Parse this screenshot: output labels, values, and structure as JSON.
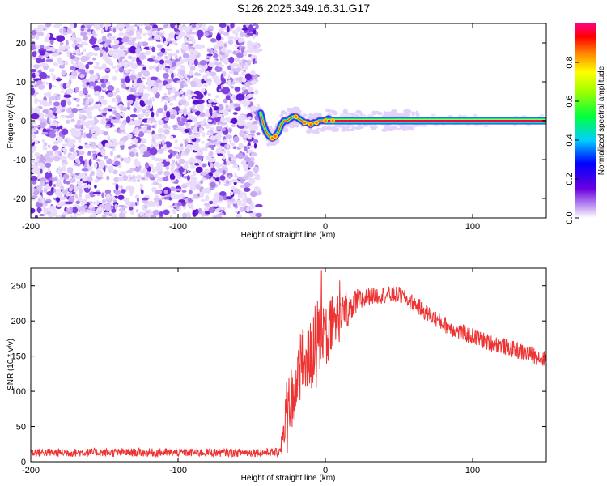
{
  "title": "S126.2025.349.16.31.G17",
  "chart_data": [
    {
      "type": "heatmap",
      "xlabel": "Height of straight line (km)",
      "ylabel": "Frequency (Hz)",
      "xlim": [
        -200,
        150
      ],
      "ylim": [
        -25,
        25
      ],
      "xticks": [
        -200,
        -100,
        0,
        100
      ],
      "xtick_labels": [
        "-200",
        "-100",
        "0",
        "100"
      ],
      "yticks": [
        -20,
        -10,
        0,
        10,
        20
      ],
      "ytick_labels": [
        "-20",
        "-10",
        "0",
        "10",
        "20"
      ],
      "noise_region_x": [
        -200,
        -45
      ],
      "trace": [
        {
          "x": -44,
          "y": 2
        },
        {
          "x": -42,
          "y": -1
        },
        {
          "x": -40,
          "y": -3
        },
        {
          "x": -38,
          "y": -4
        },
        {
          "x": -36,
          "y": -4.5
        },
        {
          "x": -34,
          "y": -4
        },
        {
          "x": -32,
          "y": -3
        },
        {
          "x": -30,
          "y": -1
        },
        {
          "x": -28,
          "y": 0
        },
        {
          "x": -26,
          "y": 0
        },
        {
          "x": -24,
          "y": 0.5
        },
        {
          "x": -22,
          "y": 1
        },
        {
          "x": -20,
          "y": 1
        },
        {
          "x": -18,
          "y": 0.5
        },
        {
          "x": -16,
          "y": 0
        },
        {
          "x": -14,
          "y": -0.5
        },
        {
          "x": -12,
          "y": -0.5
        },
        {
          "x": -10,
          "y": -1
        },
        {
          "x": -8,
          "y": -0.5
        },
        {
          "x": -6,
          "y": -0.5
        },
        {
          "x": -4,
          "y": 0
        },
        {
          "x": -2,
          "y": 0
        },
        {
          "x": 0,
          "y": 0
        },
        {
          "x": 2,
          "y": 0.5
        },
        {
          "x": 5,
          "y": 0
        },
        {
          "x": 10,
          "y": 0
        },
        {
          "x": 20,
          "y": 0
        },
        {
          "x": 150,
          "y": 0
        }
      ],
      "steady_band": {
        "x_start": 0,
        "x_end": 150,
        "y": 0
      },
      "colorbar": {
        "label": "Normalized spectral amplitude",
        "range": [
          0,
          1
        ],
        "ticks": [
          0.0,
          0.2,
          0.4,
          0.6,
          0.8
        ],
        "tick_labels": [
          "0.0",
          "0.2",
          "0.4",
          "0.6",
          "0.8"
        ]
      }
    },
    {
      "type": "line",
      "xlabel": "Height of straight line (km)",
      "ylabel": "SNR (10 * v/v)",
      "xlim": [
        -200,
        150
      ],
      "ylim": [
        0,
        275
      ],
      "xticks": [
        -200,
        -100,
        0,
        100
      ],
      "xtick_labels": [
        "-200",
        "-100",
        "0",
        "100"
      ],
      "yticks": [
        0,
        50,
        100,
        150,
        200,
        250
      ],
      "ytick_labels": [
        "0",
        "50",
        "100",
        "150",
        "200",
        "250"
      ],
      "color": "#ee3333",
      "envelope": [
        {
          "x": -200,
          "y": 13
        },
        {
          "x": -150,
          "y": 13
        },
        {
          "x": -100,
          "y": 13
        },
        {
          "x": -60,
          "y": 13
        },
        {
          "x": -32,
          "y": 13
        },
        {
          "x": -28,
          "y": 35
        },
        {
          "x": -25,
          "y": 80
        },
        {
          "x": -20,
          "y": 110
        },
        {
          "x": -15,
          "y": 135
        },
        {
          "x": -10,
          "y": 150
        },
        {
          "x": -5,
          "y": 165
        },
        {
          "x": 0,
          "y": 180
        },
        {
          "x": 5,
          "y": 195
        },
        {
          "x": 10,
          "y": 205
        },
        {
          "x": 15,
          "y": 215
        },
        {
          "x": 20,
          "y": 225
        },
        {
          "x": 30,
          "y": 235
        },
        {
          "x": 40,
          "y": 237
        },
        {
          "x": 50,
          "y": 237
        },
        {
          "x": 60,
          "y": 225
        },
        {
          "x": 70,
          "y": 210
        },
        {
          "x": 80,
          "y": 196
        },
        {
          "x": 90,
          "y": 185
        },
        {
          "x": 100,
          "y": 178
        },
        {
          "x": 110,
          "y": 170
        },
        {
          "x": 120,
          "y": 165
        },
        {
          "x": 130,
          "y": 158
        },
        {
          "x": 140,
          "y": 152
        },
        {
          "x": 150,
          "y": 145
        }
      ],
      "noise_amplitude": [
        {
          "x": -200,
          "y": 6
        },
        {
          "x": -32,
          "y": 6
        },
        {
          "x": -25,
          "y": 45
        },
        {
          "x": -10,
          "y": 55
        },
        {
          "x": 0,
          "y": 50
        },
        {
          "x": 15,
          "y": 25
        },
        {
          "x": 30,
          "y": 12
        },
        {
          "x": 150,
          "y": 12
        }
      ]
    }
  ]
}
